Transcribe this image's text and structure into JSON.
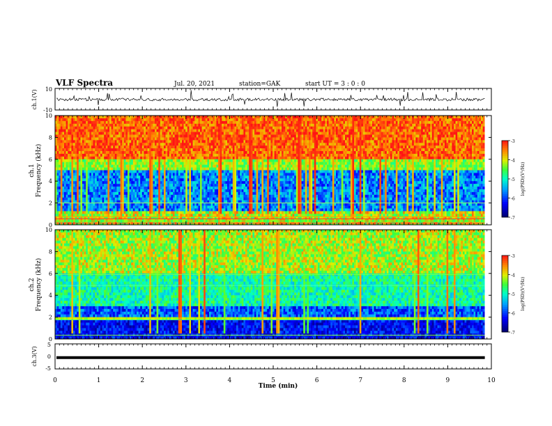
{
  "header": {
    "title": "VLF Spectra",
    "date": "Jul. 20, 2021",
    "station": "station=GAK",
    "start": "start UT = 3 : 0 : 0"
  },
  "chart_data": [
    {
      "type": "line",
      "name": "ch1-waveform",
      "ylabel": "ch.1(V)",
      "ylim": [
        -10,
        10
      ],
      "yticks": [
        "10",
        "-10"
      ],
      "xlim": [
        0,
        10
      ]
    },
    {
      "type": "heatmap",
      "name": "ch1-spectrogram",
      "ylabel": "ch.1 Frequency (kHz)",
      "ylim": [
        0,
        10
      ],
      "yticks": [
        "0",
        "2",
        "4",
        "6",
        "8",
        "10"
      ],
      "xlim": [
        0,
        10
      ],
      "data_end_min": 9.85,
      "colorbar": {
        "label": "log(PSD)(V²/Hz)",
        "range": [
          -7,
          -3
        ],
        "ticks": [
          "-3",
          "-4",
          "-5",
          "-6",
          "-7"
        ]
      }
    },
    {
      "type": "heatmap",
      "name": "ch2-spectrogram",
      "ylabel": "ch.2 Frequency (kHz)",
      "ylim": [
        0,
        10
      ],
      "yticks": [
        "0",
        "2",
        "4",
        "6",
        "8",
        "10"
      ],
      "xlim": [
        0,
        10
      ],
      "data_end_min": 9.85,
      "colorbar": {
        "label": "log(PSD)(V²/Hz)",
        "range": [
          -7,
          -3
        ],
        "ticks": [
          "-3",
          "-4",
          "-5",
          "-6",
          "-7"
        ]
      }
    },
    {
      "type": "line",
      "name": "ch3-waveform",
      "ylabel": "ch.3(V)",
      "ylim": [
        -5,
        5
      ],
      "yticks": [
        "5",
        "0",
        "-5"
      ],
      "level_v": -0.5,
      "xlim": [
        0,
        10
      ]
    }
  ],
  "xaxis": {
    "label": "Time (min)",
    "ticks": [
      "0",
      "1",
      "2",
      "3",
      "4",
      "5",
      "6",
      "7",
      "8",
      "9",
      "10"
    ]
  }
}
